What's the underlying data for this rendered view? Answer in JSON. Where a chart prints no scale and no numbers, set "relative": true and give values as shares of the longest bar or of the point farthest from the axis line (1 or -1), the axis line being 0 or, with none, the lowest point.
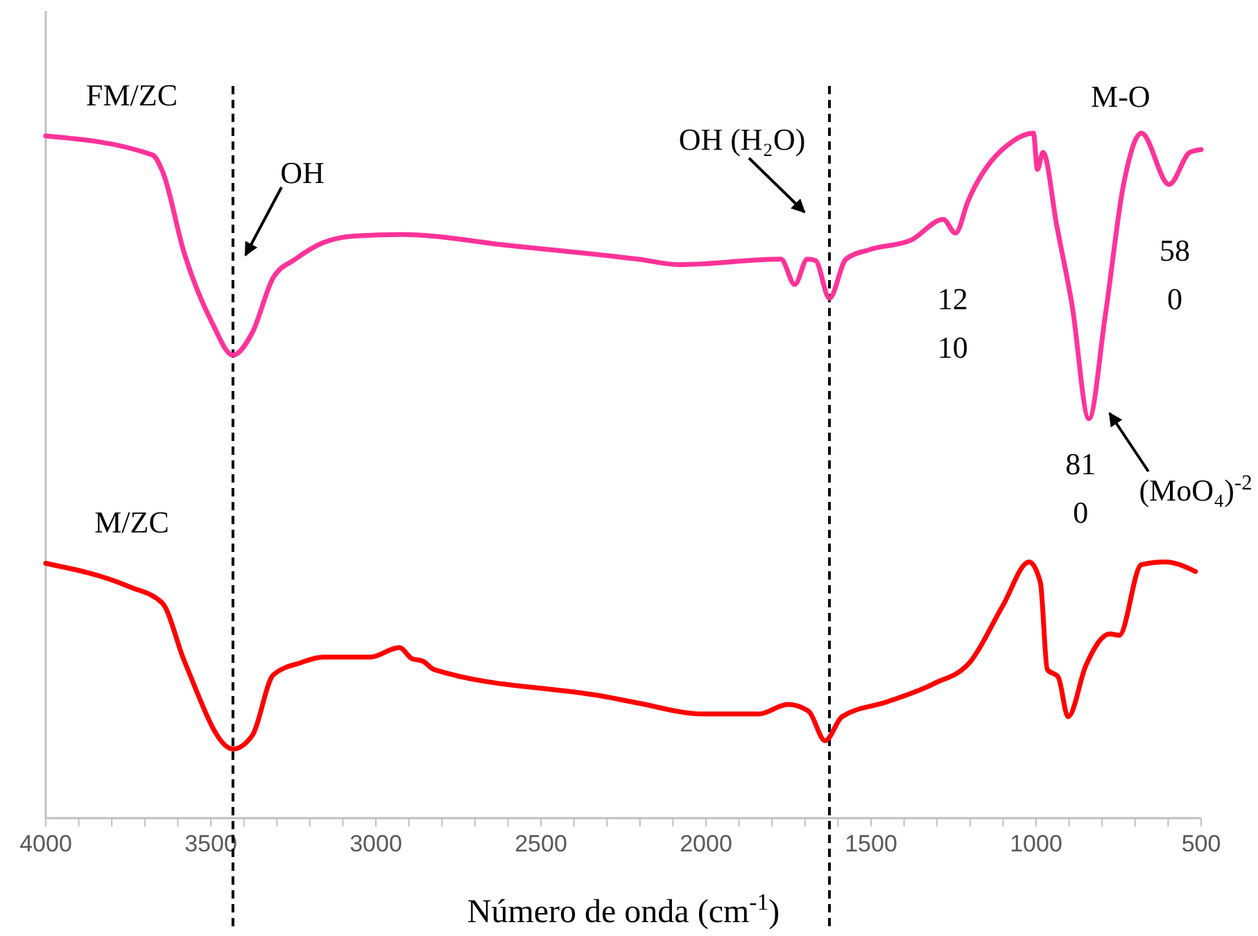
{
  "chart_data": {
    "type": "line",
    "relative": true,
    "xlabel": "Número de onda (cm$^{-1}$)",
    "xlim": [
      4000,
      500
    ],
    "xticks": [
      4000,
      {
        "value": 3900,
        "label": null
      },
      {
        "value": 3800,
        "label": null
      },
      {
        "value": 3700,
        "label": null
      },
      {
        "value": 3600,
        "label": null
      },
      3500,
      {
        "value": 3400,
        "label": null
      },
      {
        "value": 3300,
        "label": null
      },
      {
        "value": 3200,
        "label": null
      },
      {
        "value": 3100,
        "label": null
      },
      3000,
      {
        "value": 2900,
        "label": null
      },
      {
        "value": 2800,
        "label": null
      },
      {
        "value": 2700,
        "label": null
      },
      {
        "value": 2600,
        "label": null
      },
      2500,
      {
        "value": 2400,
        "label": null
      },
      {
        "value": 2300,
        "label": null
      },
      {
        "value": 2200,
        "label": null
      },
      {
        "value": 2100,
        "label": null
      },
      2000,
      {
        "value": 1900,
        "label": null
      },
      {
        "value": 1800,
        "label": null
      },
      {
        "value": 1700,
        "label": null
      },
      {
        "value": 1600,
        "label": null
      },
      1500,
      {
        "value": 1400,
        "label": null
      },
      {
        "value": 1300,
        "label": null
      },
      {
        "value": 1200,
        "label": null
      },
      {
        "value": 1100,
        "label": null
      },
      1000,
      {
        "value": 900,
        "label": null
      },
      {
        "value": 800,
        "label": null
      },
      {
        "value": 700,
        "label": null
      },
      {
        "value": 600,
        "label": null
      },
      500
    ],
    "grid": false,
    "marker": "none",
    "line_style": "solid",
    "series": [
      {
        "name": "FM/ZC",
        "color": "#ff3399",
        "x": [
          4000,
          3676,
          3647,
          3580,
          3496,
          3433,
          3374,
          3311,
          3244,
          3160,
          3059,
          2920,
          2597,
          2206,
          2080,
          1773,
          1731,
          1693,
          1668,
          1626,
          1576,
          1504,
          1378,
          1281,
          1244,
          1206,
          1071,
          1008,
          996,
          979,
          937,
          891,
          840,
          790,
          735,
          681,
          597,
          534,
          500
        ],
        "values": [
          0.996,
          0.968,
          0.945,
          0.824,
          0.723,
          0.676,
          0.709,
          0.789,
          0.816,
          0.84,
          0.85,
          0.852,
          0.836,
          0.816,
          0.808,
          0.816,
          0.779,
          0.816,
          0.814,
          0.759,
          0.816,
          0.83,
          0.844,
          0.874,
          0.854,
          0.901,
          0.988,
          1,
          0.947,
          0.972,
          0.864,
          0.749,
          0.583,
          0.735,
          0.925,
          1,
          0.925,
          0.972,
          0.976
        ]
      },
      {
        "name": "M/ZC",
        "color": "#ff0000",
        "x": [
          4000,
          3748,
          3647,
          3580,
          3433,
          3374,
          3311,
          3227,
          3160,
          3017,
          2929,
          2891,
          2857,
          2824,
          2290,
          2206,
          2008,
          1840,
          1752,
          1689,
          1639,
          1588,
          1450,
          1311,
          1198,
          1101,
          1021,
          987,
          966,
          933,
          903,
          849,
          777,
          748,
          681,
          609,
          517
        ],
        "values": [
          0.372,
          0.338,
          0.314,
          0.229,
          0.101,
          0.121,
          0.209,
          0.227,
          0.235,
          0.235,
          0.249,
          0.233,
          0.229,
          0.217,
          0.176,
          0.168,
          0.152,
          0.152,
          0.166,
          0.156,
          0.113,
          0.148,
          0.17,
          0.196,
          0.229,
          0.31,
          0.374,
          0.344,
          0.217,
          0.206,
          0.148,
          0.223,
          0.269,
          0.267,
          0.37,
          0.374,
          0.36
        ]
      }
    ],
    "ref_lines": [
      {
        "axis": "x",
        "value": 3433,
        "color": "#000000",
        "line_style": "dashed"
      },
      {
        "axis": "x",
        "value": 1626,
        "color": "#000000",
        "line_style": "dashed"
      }
    ],
    "annotations": [
      "OH",
      "OH (H₂O)",
      {
        "text": "12\n10",
        "x": 1244,
        "y": 0.854
      },
      {
        "text": "M-O",
        "x": 681,
        "y": 0.998
      },
      {
        "text": "58\n0",
        "x": 580,
        "y": 0.925
      },
      {
        "text": "81\n0",
        "x": 840,
        "y": 0.583
      },
      "(MoO₄)$^{-2}$"
    ]
  }
}
